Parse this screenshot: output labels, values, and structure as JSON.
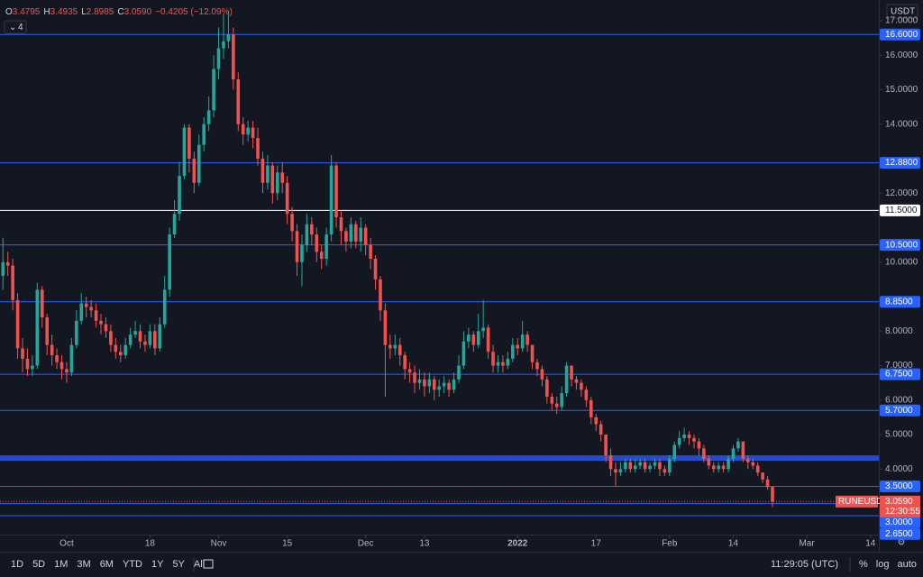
{
  "chart_data": {
    "type": "candlestick",
    "symbol": "RUNEUSDT",
    "currency": "USDT",
    "indicator_count": "4",
    "header": [
      {
        "label": "O",
        "value": "3.4795"
      },
      {
        "label": "H",
        "value": "3.4935"
      },
      {
        "label": "L",
        "value": "2.8985"
      },
      {
        "label": "C",
        "value": "3.0590"
      },
      {
        "label": "",
        "value": "−0.4205 (−12.09%)"
      }
    ],
    "last_price": {
      "value": 3.059,
      "label": "3.0590",
      "countdown": "12:30:55"
    },
    "up_color": "#26a69a",
    "down_color": "#ef5350",
    "level_color": "#2962ff",
    "key_level_color": "#ffffff",
    "open": [
      9.6,
      10.0,
      9.9,
      8.9,
      7.5,
      7.2,
      6.9,
      7.0,
      9.2,
      8.4,
      7.6,
      7.3,
      7.1,
      6.9,
      6.8,
      7.6,
      8.3,
      8.8,
      8.7,
      8.6,
      8.3,
      8.2,
      8.0,
      7.6,
      7.4,
      7.3,
      7.6,
      7.9,
      8.0,
      7.7,
      7.6,
      8.0,
      7.5,
      8.2,
      9.2,
      10.8,
      11.4,
      12.5,
      13.9,
      13.0,
      12.3,
      13.4,
      14.0,
      14.4,
      15.6,
      16.2,
      16.4,
      16.6,
      15.3,
      14.0,
      13.7,
      13.9,
      13.6,
      13.0,
      12.3,
      12.8,
      12.0,
      12.6,
      12.3,
      11.4,
      10.9,
      10.0,
      10.5,
      11.1,
      10.8,
      10.3,
      10.1,
      10.8,
      12.8,
      11.3,
      10.9,
      10.6,
      11.1,
      10.6,
      11.0,
      10.5,
      10.1,
      9.5,
      8.6,
      7.6,
      7.5,
      7.6,
      7.3,
      6.9,
      6.8,
      6.5,
      6.6,
      6.4,
      6.6,
      6.3,
      6.4,
      6.5,
      6.3,
      6.6,
      7.0,
      7.7,
      7.9,
      7.6,
      8.0,
      8.1,
      7.4,
      7.0,
      7.1,
      7.0,
      7.2,
      7.6,
      7.5,
      7.9,
      7.6,
      7.1,
      6.9,
      6.6,
      6.1,
      5.9,
      5.8,
      6.2,
      7.0,
      6.6,
      6.5,
      6.3,
      6.0,
      5.5,
      5.3,
      5.0,
      4.4,
      4.0,
      3.9,
      4.0,
      4.2,
      4.0,
      4.1,
      4.2,
      4.0,
      4.1,
      4.2,
      4.0,
      3.9,
      4.3,
      4.7,
      4.9,
      5.0,
      4.9,
      4.8,
      4.6,
      4.3,
      4.1,
      4.0,
      4.1,
      4.0,
      4.3,
      4.6,
      4.8,
      4.3,
      4.2,
      4.1,
      3.9,
      3.7,
      3.4795
    ],
    "high": [
      10.7,
      10.3,
      10.1,
      9.1,
      7.8,
      7.5,
      7.3,
      9.4,
      9.3,
      8.5,
      7.9,
      7.5,
      7.3,
      7.1,
      7.8,
      8.6,
      9.1,
      9.0,
      8.9,
      8.8,
      8.5,
      8.4,
      8.2,
      7.8,
      7.6,
      7.8,
      8.1,
      8.3,
      8.2,
      7.9,
      8.2,
      8.2,
      8.4,
      9.6,
      11.0,
      11.8,
      12.9,
      14.0,
      14.0,
      13.2,
      13.7,
      14.2,
      14.8,
      16.0,
      16.8,
      17.2,
      17.3,
      16.8,
      15.5,
      14.2,
      14.1,
      14.1,
      13.9,
      13.2,
      13.1,
      12.9,
      12.8,
      12.9,
      12.5,
      11.6,
      11.1,
      10.8,
      11.4,
      11.3,
      11.0,
      10.5,
      11.0,
      13.1,
      12.9,
      11.5,
      11.0,
      11.3,
      11.2,
      11.3,
      11.1,
      10.7,
      10.2,
      9.6,
      8.8,
      7.9,
      7.9,
      7.8,
      7.4,
      7.1,
      7.0,
      6.9,
      6.8,
      6.8,
      6.7,
      6.6,
      6.7,
      6.6,
      6.8,
      7.3,
      8.0,
      8.1,
      8.0,
      8.5,
      8.9,
      8.2,
      7.6,
      7.3,
      7.3,
      7.4,
      7.8,
      7.8,
      8.3,
      8.0,
      7.6,
      7.2,
      7.0,
      6.7,
      6.2,
      6.1,
      6.4,
      7.1,
      7.0,
      6.7,
      6.6,
      6.4,
      6.1,
      5.6,
      5.4,
      5.0,
      4.6,
      4.2,
      4.2,
      4.3,
      4.3,
      4.3,
      4.3,
      4.3,
      4.2,
      4.3,
      4.3,
      4.1,
      4.4,
      4.8,
      5.1,
      5.2,
      5.1,
      5.0,
      4.9,
      4.7,
      4.4,
      4.2,
      4.2,
      4.2,
      4.4,
      4.7,
      4.9,
      4.8,
      4.4,
      4.3,
      4.2,
      3.9,
      3.8,
      3.4935
    ],
    "low": [
      9.2,
      9.6,
      8.6,
      7.2,
      6.8,
      6.7,
      6.7,
      6.9,
      8.1,
      7.3,
      7.0,
      6.9,
      6.6,
      6.5,
      6.7,
      7.5,
      8.2,
      8.4,
      8.4,
      8.1,
      7.9,
      7.8,
      7.4,
      7.2,
      7.1,
      7.2,
      7.5,
      7.8,
      7.5,
      7.4,
      7.5,
      7.3,
      7.4,
      8.1,
      9.0,
      10.7,
      11.2,
      12.4,
      12.6,
      12.0,
      12.2,
      13.2,
      13.8,
      14.2,
      15.3,
      15.9,
      16.2,
      15.0,
      13.8,
      13.4,
      13.5,
      13.3,
      12.8,
      12.0,
      12.1,
      11.7,
      11.8,
      12.0,
      11.1,
      10.6,
      9.6,
      9.3,
      10.3,
      10.5,
      10.0,
      9.8,
      9.9,
      10.6,
      11.0,
      10.5,
      10.3,
      10.4,
      10.4,
      10.3,
      10.2,
      9.8,
      9.2,
      8.3,
      6.1,
      7.2,
      7.3,
      7.0,
      6.6,
      6.5,
      6.2,
      6.3,
      6.1,
      6.2,
      6.0,
      6.1,
      6.2,
      6.1,
      6.2,
      6.5,
      6.9,
      7.5,
      7.4,
      7.5,
      7.8,
      7.2,
      6.8,
      6.8,
      6.8,
      6.9,
      7.1,
      7.3,
      7.4,
      7.4,
      6.9,
      6.7,
      6.4,
      5.9,
      5.7,
      5.6,
      5.7,
      6.1,
      6.4,
      6.3,
      6.1,
      5.8,
      5.3,
      5.1,
      4.8,
      4.2,
      3.8,
      3.5,
      3.8,
      3.9,
      3.9,
      3.9,
      4.0,
      3.9,
      3.9,
      4.0,
      3.8,
      3.8,
      3.8,
      4.2,
      4.6,
      4.8,
      4.7,
      4.6,
      4.4,
      4.2,
      4.0,
      3.9,
      3.9,
      3.9,
      3.9,
      4.2,
      4.5,
      4.2,
      4.0,
      4.0,
      3.8,
      3.6,
      3.4,
      2.8985
    ],
    "close": [
      10.0,
      9.9,
      8.9,
      7.5,
      7.2,
      6.9,
      7.0,
      9.2,
      8.4,
      7.6,
      7.3,
      7.1,
      6.9,
      6.8,
      7.6,
      8.3,
      8.8,
      8.7,
      8.6,
      8.3,
      8.2,
      8.0,
      7.6,
      7.4,
      7.3,
      7.6,
      7.9,
      8.0,
      7.7,
      7.6,
      8.0,
      7.5,
      8.2,
      9.2,
      10.8,
      11.4,
      12.5,
      13.9,
      13.0,
      12.3,
      13.4,
      14.0,
      14.4,
      15.6,
      16.2,
      16.4,
      16.6,
      15.3,
      14.0,
      13.7,
      13.9,
      13.6,
      13.0,
      12.3,
      12.8,
      12.0,
      12.6,
      12.3,
      11.4,
      10.9,
      10.0,
      10.5,
      11.1,
      10.8,
      10.3,
      10.1,
      10.8,
      12.8,
      11.3,
      10.9,
      10.6,
      11.1,
      10.6,
      11.0,
      10.5,
      10.1,
      9.5,
      8.6,
      7.6,
      7.5,
      7.6,
      7.3,
      6.9,
      6.8,
      6.5,
      6.6,
      6.4,
      6.6,
      6.3,
      6.4,
      6.5,
      6.3,
      6.6,
      7.0,
      7.7,
      7.9,
      7.6,
      8.0,
      8.1,
      7.4,
      7.0,
      7.1,
      7.0,
      7.2,
      7.6,
      7.5,
      7.9,
      7.6,
      7.1,
      6.9,
      6.6,
      6.1,
      5.9,
      5.8,
      6.2,
      7.0,
      6.6,
      6.5,
      6.3,
      6.0,
      5.5,
      5.3,
      5.0,
      4.4,
      4.0,
      3.9,
      4.0,
      4.2,
      4.0,
      4.1,
      4.2,
      4.0,
      4.1,
      4.2,
      4.0,
      3.9,
      4.3,
      4.7,
      4.9,
      5.0,
      4.9,
      4.8,
      4.6,
      4.3,
      4.1,
      4.0,
      4.1,
      4.0,
      4.3,
      4.6,
      4.8,
      4.3,
      4.2,
      4.1,
      3.9,
      3.7,
      3.48,
      3.059
    ],
    "xlim": [
      -0.6,
      178.7
    ],
    "xticks": [
      {
        "value": 13,
        "label": "Oct"
      },
      {
        "value": 30,
        "label": "18"
      },
      {
        "value": 44,
        "label": "Nov"
      },
      {
        "value": 58,
        "label": "15"
      },
      {
        "value": 74,
        "label": "Dec"
      },
      {
        "value": 86,
        "label": "13"
      },
      {
        "value": 105,
        "label": "2022"
      },
      {
        "value": 121,
        "label": "17"
      },
      {
        "value": 136,
        "label": "Feb"
      },
      {
        "value": 149,
        "label": "14"
      },
      {
        "value": 164,
        "label": "Mar"
      },
      {
        "value": 177,
        "label": "14"
      }
    ],
    "ylim": [
      2.1,
      17.6
    ],
    "yticks": [
      {
        "value": 17,
        "label": "17.0000"
      },
      {
        "value": 16,
        "label": "16.0000"
      },
      {
        "value": 15,
        "label": "15.0000"
      },
      {
        "value": 14,
        "label": "14.0000"
      },
      {
        "value": 12,
        "label": "12.0000"
      },
      {
        "value": 10,
        "label": "10.0000"
      },
      {
        "value": 8,
        "label": "8.0000"
      },
      {
        "value": 7,
        "label": "7.0000"
      },
      {
        "value": 6,
        "label": "6.0000"
      },
      {
        "value": 5,
        "label": "5.0000"
      },
      {
        "value": 4,
        "label": "4.0000"
      }
    ],
    "levels": [
      {
        "value": 16.6,
        "label": "16.6000"
      },
      {
        "value": 12.88,
        "label": "12.8800"
      },
      {
        "value": 11.5,
        "label": "11.5000",
        "key": true
      },
      {
        "value": 10.5,
        "label": "10.5000"
      },
      {
        "value": 8.85,
        "label": "8.8500"
      },
      {
        "value": 6.75,
        "label": "6.7500"
      },
      {
        "value": 5.7,
        "label": "5.7000"
      },
      {
        "value": 3.5,
        "label": "3.5000"
      },
      {
        "value": 3.0,
        "label": "3.0000"
      },
      {
        "value": 2.65,
        "label": "2.6500"
      }
    ],
    "zone": 4.32,
    "timeframes": [
      "1D",
      "5D",
      "1M",
      "3M",
      "6M",
      "YTD",
      "1Y",
      "5Y",
      "All"
    ],
    "clock": "11:29:05 (UTC)",
    "scale_options": [
      "%",
      "log",
      "auto"
    ]
  }
}
